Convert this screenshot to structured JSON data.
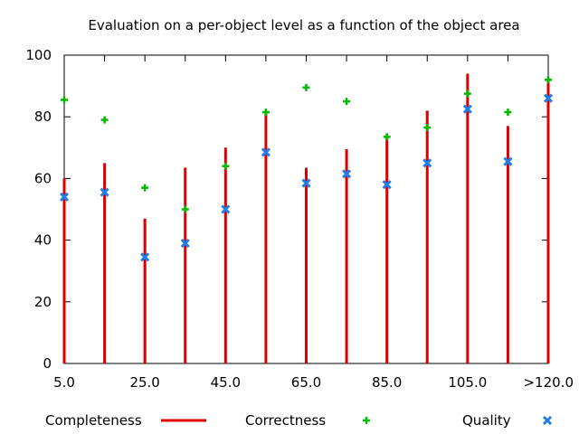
{
  "chart_data": {
    "type": "bar",
    "title": "Evaluation on a per-object level as a function of the object area",
    "xlabel": "",
    "ylabel": "",
    "ylim": [
      0,
      100
    ],
    "yticks": [
      0,
      20,
      40,
      60,
      80,
      100
    ],
    "grid": false,
    "legend_position": "bottom",
    "categories": [
      "5.0",
      "15.0",
      "25.0",
      "35.0",
      "45.0",
      "55.0",
      "65.0",
      "75.0",
      "85.0",
      "95.0",
      "105.0",
      "115.0",
      ">120.0"
    ],
    "tick_labels": [
      "5.0",
      "25.0",
      "45.0",
      "65.0",
      "85.0",
      "105.0",
      ">120.0"
    ],
    "series": [
      {
        "name": "Completeness",
        "style": "impulses",
        "color": "#dd0000",
        "values": [
          60,
          65,
          47,
          63.5,
          70,
          82,
          63.5,
          69.5,
          74,
          82,
          94,
          77,
          92
        ]
      },
      {
        "name": "Correctness",
        "style": "plus",
        "color": "#00bb00",
        "values": [
          85.5,
          79,
          57,
          50,
          64,
          81.5,
          89.5,
          85,
          73.5,
          76.5,
          87.5,
          81.5,
          92
        ]
      },
      {
        "name": "Quality",
        "style": "cross",
        "color": "#1f7fe8",
        "values": [
          54,
          55.5,
          34.5,
          39,
          50,
          68.5,
          58.5,
          61.5,
          58,
          65,
          82.5,
          65.5,
          86
        ]
      }
    ]
  }
}
